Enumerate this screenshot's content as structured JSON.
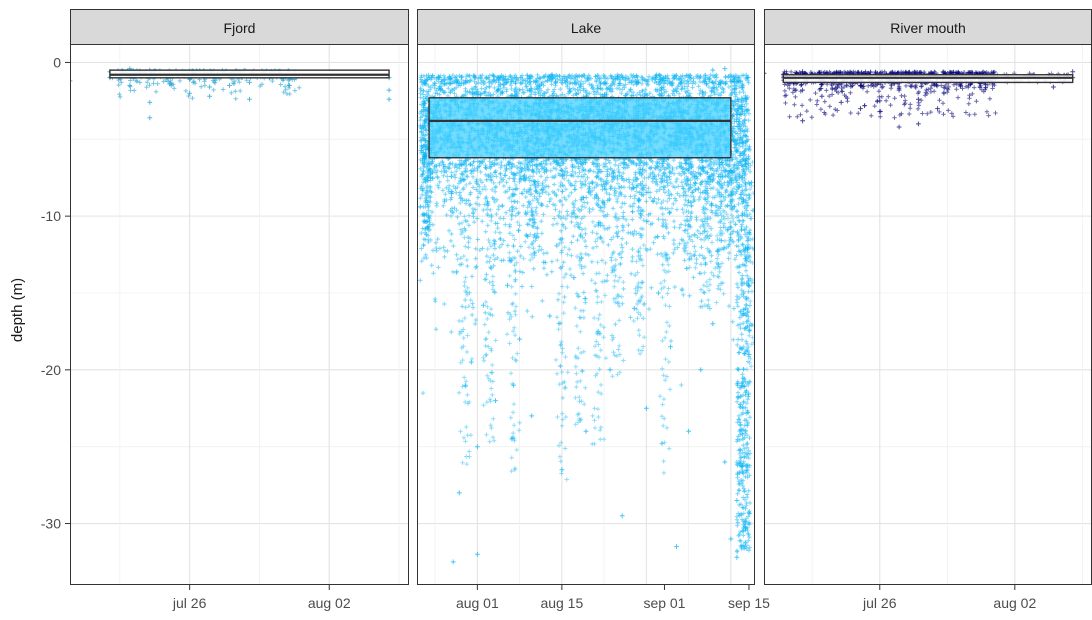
{
  "chart_data": {
    "type": "scatter",
    "ylabel": "depth (m)",
    "y_ticks": [
      0,
      -10,
      -20,
      -30
    ],
    "ylim": [
      -34,
      1.2
    ],
    "grid": true,
    "legend": "none",
    "facets": [
      {
        "title": "Fjord",
        "point_color": "#1fa0d0",
        "x_range": [
          "2023-07-20",
          "2023-08-06"
        ],
        "x_ticks": [
          {
            "date": "2023-07-26",
            "label": "jul 26"
          },
          {
            "date": "2023-08-02",
            "label": "aug 02"
          }
        ],
        "box": {
          "x_start": "2023-07-22",
          "x_end": "2023-08-05",
          "q1": -1.0,
          "median": -0.8,
          "q3": -0.5
        },
        "points": [
          {
            "x": "2023-07-20",
            "y": -1.2
          },
          {
            "x": "2023-07-22",
            "y": -0.6
          },
          {
            "x": "2023-07-22",
            "y": -1.0
          },
          {
            "x": "2023-07-23",
            "y": -0.4
          },
          {
            "x": "2023-07-23",
            "y": -0.9
          },
          {
            "x": "2023-07-23",
            "y": -1.5
          },
          {
            "x": "2023-07-24",
            "y": -0.5
          },
          {
            "x": "2023-07-24",
            "y": -1.0
          },
          {
            "x": "2023-07-24",
            "y": -2.6
          },
          {
            "x": "2023-07-24",
            "y": -3.6
          },
          {
            "x": "2023-07-25",
            "y": -0.8
          },
          {
            "x": "2023-07-25",
            "y": -1.4
          },
          {
            "x": "2023-07-26",
            "y": -1.1
          },
          {
            "x": "2023-07-26",
            "y": -2.0
          },
          {
            "x": "2023-07-27",
            "y": -1.6
          },
          {
            "x": "2023-07-27",
            "y": -2.2
          },
          {
            "x": "2023-07-28",
            "y": -0.9
          },
          {
            "x": "2023-07-28",
            "y": -1.5
          },
          {
            "x": "2023-07-29",
            "y": -1.3
          },
          {
            "x": "2023-07-29",
            "y": -2.4
          },
          {
            "x": "2023-07-30",
            "y": -1.0
          },
          {
            "x": "2023-07-31",
            "y": -1.1
          },
          {
            "x": "2023-07-31",
            "y": -1.5
          },
          {
            "x": "2023-08-05",
            "y": -1.0
          },
          {
            "x": "2023-08-05",
            "y": -1.8
          },
          {
            "x": "2023-08-05",
            "y": -2.4
          }
        ]
      },
      {
        "title": "Lake",
        "point_color": "#0cb4f4",
        "x_range": [
          "2023-07-22",
          "2023-09-16"
        ],
        "x_ticks": [
          {
            "date": "2023-08-01",
            "label": "aug 01"
          },
          {
            "date": "2023-08-15",
            "label": "aug 15"
          },
          {
            "date": "2023-09-01",
            "label": "sep 01"
          },
          {
            "date": "2023-09-15",
            "label": "sep 15"
          }
        ],
        "box": {
          "x_start": "2023-07-24",
          "x_end": "2023-09-12",
          "q1": -6.2,
          "median": -3.8,
          "q3": -2.3
        },
        "points": [
          {
            "x": "2023-07-28",
            "y": -32.5
          },
          {
            "x": "2023-07-29",
            "y": -28
          },
          {
            "x": "2023-07-30",
            "y": -21
          },
          {
            "x": "2023-07-31",
            "y": -19.5
          },
          {
            "x": "2023-08-01",
            "y": -32
          },
          {
            "x": "2023-08-01",
            "y": -25
          },
          {
            "x": "2023-08-02",
            "y": -15.8
          },
          {
            "x": "2023-08-04",
            "y": -22
          },
          {
            "x": "2023-08-06",
            "y": -14.5
          },
          {
            "x": "2023-08-07",
            "y": -21
          },
          {
            "x": "2023-08-08",
            "y": -18
          },
          {
            "x": "2023-08-10",
            "y": -23
          },
          {
            "x": "2023-08-12",
            "y": -13
          },
          {
            "x": "2023-08-13",
            "y": -16.5
          },
          {
            "x": "2023-08-15",
            "y": -26.5
          },
          {
            "x": "2023-08-17",
            "y": -14
          },
          {
            "x": "2023-08-19",
            "y": -24
          },
          {
            "x": "2023-08-21",
            "y": -17.5
          },
          {
            "x": "2023-08-23",
            "y": -20
          },
          {
            "x": "2023-08-25",
            "y": -29.5
          },
          {
            "x": "2023-08-27",
            "y": -16
          },
          {
            "x": "2023-08-29",
            "y": -22.5
          },
          {
            "x": "2023-08-31",
            "y": -15
          },
          {
            "x": "2023-09-02",
            "y": -18.5
          },
          {
            "x": "2023-09-03",
            "y": -31.5
          },
          {
            "x": "2023-09-05",
            "y": -24
          },
          {
            "x": "2023-09-07",
            "y": -20
          },
          {
            "x": "2023-09-09",
            "y": -17
          },
          {
            "x": "2023-09-11",
            "y": -26
          },
          {
            "x": "2023-09-12",
            "y": -31
          },
          {
            "x": "2023-09-13",
            "y": -32.2
          },
          {
            "x": "2023-09-13",
            "y": -28.5
          },
          {
            "x": "2023-09-14",
            "y": -30.5
          },
          {
            "x": "2023-09-14",
            "y": -24.5
          },
          {
            "x": "2023-09-15",
            "y": -19
          },
          {
            "x": "2023-09-15",
            "y": -14.5
          },
          {
            "x": "2023-09-09",
            "y": -0.5
          },
          {
            "x": "2023-09-11",
            "y": -0.4
          }
        ]
      },
      {
        "title": "River mouth",
        "point_color": "#0a0a7a",
        "x_range": [
          "2023-07-20",
          "2023-08-06"
        ],
        "x_ticks": [
          {
            "date": "2023-07-26",
            "label": "jul 26"
          },
          {
            "date": "2023-08-02",
            "label": "aug 02"
          }
        ],
        "box": {
          "x_start": "2023-07-21",
          "x_end": "2023-08-05",
          "q1": -1.3,
          "median": -1.0,
          "q3": -0.8
        },
        "points": [
          {
            "x": "2023-07-20",
            "y": -0.7
          },
          {
            "x": "2023-07-21",
            "y": -0.8
          },
          {
            "x": "2023-07-22",
            "y": -0.6
          },
          {
            "x": "2023-07-22",
            "y": -1.8
          },
          {
            "x": "2023-07-22",
            "y": -3.8
          },
          {
            "x": "2023-07-23",
            "y": -1.4
          },
          {
            "x": "2023-07-23",
            "y": -2.2
          },
          {
            "x": "2023-07-24",
            "y": -1.0
          },
          {
            "x": "2023-07-24",
            "y": -2.6
          },
          {
            "x": "2023-07-25",
            "y": -3.0
          },
          {
            "x": "2023-07-25",
            "y": -1.5
          },
          {
            "x": "2023-07-26",
            "y": -2.5
          },
          {
            "x": "2023-07-26",
            "y": -3.2
          },
          {
            "x": "2023-07-27",
            "y": -4.2
          },
          {
            "x": "2023-07-27",
            "y": -1.8
          },
          {
            "x": "2023-07-28",
            "y": -2.4
          },
          {
            "x": "2023-07-28",
            "y": -4.0
          },
          {
            "x": "2023-07-29",
            "y": -3.0
          },
          {
            "x": "2023-07-30",
            "y": -1.4
          },
          {
            "x": "2023-07-31",
            "y": -0.9
          },
          {
            "x": "2023-08-01",
            "y": -1.1
          },
          {
            "x": "2023-08-02",
            "y": -1.2
          },
          {
            "x": "2023-08-03",
            "y": -0.8
          },
          {
            "x": "2023-08-04",
            "y": -1.6
          },
          {
            "x": "2023-08-05",
            "y": -0.6
          },
          {
            "x": "2023-08-05",
            "y": -1.0
          }
        ]
      }
    ]
  }
}
